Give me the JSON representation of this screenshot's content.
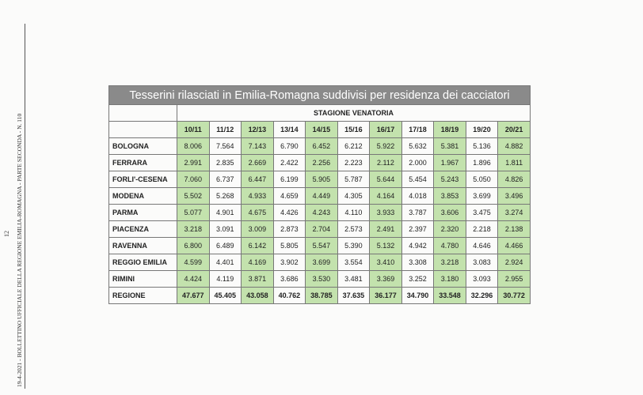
{
  "header": {
    "running_head": "19-4-2021 - BOLLETTINO UFFICIALE DELLA REGIONE EMILIA-ROMAGNA - PARTE SECONDA - N. 110",
    "page_number": "12"
  },
  "table": {
    "title": "Tesserini rilasciati in Emilia-Romagna suddivisi per residenza dei cacciatori",
    "subtitle": "STAGIONE VENATORIA",
    "columns": [
      "10/11",
      "11/12",
      "12/13",
      "13/14",
      "14/15",
      "15/16",
      "16/17",
      "17/18",
      "18/19",
      "19/20",
      "20/21"
    ],
    "rows": [
      {
        "label": "BOLOGNA",
        "values": [
          "8.006",
          "7.564",
          "7.143",
          "6.790",
          "6.452",
          "6.212",
          "5.922",
          "5.632",
          "5.381",
          "5.136",
          "4.882"
        ]
      },
      {
        "label": "FERRARA",
        "values": [
          "2.991",
          "2.835",
          "2.669",
          "2.422",
          "2.256",
          "2.223",
          "2.112",
          "2.000",
          "1.967",
          "1.896",
          "1.811"
        ]
      },
      {
        "label": "FORLI'-CESENA",
        "values": [
          "7.060",
          "6.737",
          "6.447",
          "6.199",
          "5.905",
          "5.787",
          "5.644",
          "5.454",
          "5.243",
          "5.050",
          "4.826"
        ]
      },
      {
        "label": "MODENA",
        "values": [
          "5.502",
          "5.268",
          "4.933",
          "4.659",
          "4.449",
          "4.305",
          "4.164",
          "4.018",
          "3.853",
          "3.699",
          "3.496"
        ]
      },
      {
        "label": "PARMA",
        "values": [
          "5.077",
          "4.901",
          "4.675",
          "4.426",
          "4.243",
          "4.110",
          "3.933",
          "3.787",
          "3.606",
          "3.475",
          "3.274"
        ]
      },
      {
        "label": "PIACENZA",
        "values": [
          "3.218",
          "3.091",
          "3.009",
          "2.873",
          "2.704",
          "2.573",
          "2.491",
          "2.397",
          "2.320",
          "2.218",
          "2.138"
        ]
      },
      {
        "label": "RAVENNA",
        "values": [
          "6.800",
          "6.489",
          "6.142",
          "5.805",
          "5.547",
          "5.390",
          "5.132",
          "4.942",
          "4.780",
          "4.646",
          "4.466"
        ]
      },
      {
        "label": "REGGIO EMILIA",
        "values": [
          "4.599",
          "4.401",
          "4.169",
          "3.902",
          "3.699",
          "3.554",
          "3.410",
          "3.308",
          "3.218",
          "3.083",
          "2.924"
        ]
      },
      {
        "label": "RIMINI",
        "values": [
          "4.424",
          "4.119",
          "3.871",
          "3.686",
          "3.530",
          "3.481",
          "3.369",
          "3.252",
          "3.180",
          "3.093",
          "2.955"
        ]
      },
      {
        "label": "REGIONE",
        "values": [
          "47.677",
          "45.405",
          "43.058",
          "40.762",
          "38.785",
          "37.635",
          "36.177",
          "34.790",
          "33.548",
          "32.296",
          "30.772"
        ]
      }
    ]
  }
}
